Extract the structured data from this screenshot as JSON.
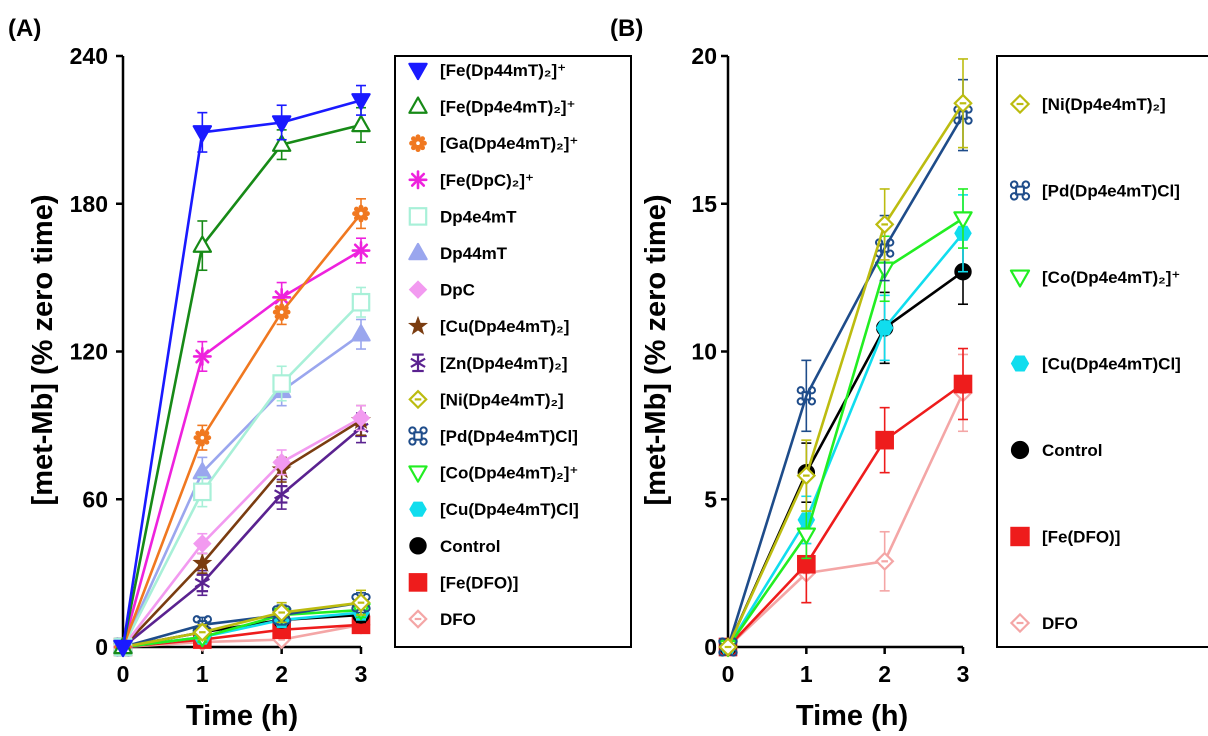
{
  "chart_data": [
    {
      "panel": "(A)",
      "type": "line",
      "xlabel": "Time (h)",
      "ylabel": "[met-Mb] (% zero time)",
      "x": [
        0,
        1,
        2,
        3
      ],
      "xlim": [
        0,
        3
      ],
      "ylim": [
        0,
        240
      ],
      "yticks": [
        0,
        60,
        120,
        180,
        240
      ],
      "grid": false,
      "legend": "right",
      "series": [
        {
          "name": "[Fe(Dp44mT)₂]⁺",
          "color": "#1a1aff",
          "marker": "triangle-down",
          "filled": true,
          "values": [
            0,
            209,
            213,
            222
          ],
          "err": [
            0,
            8,
            7,
            6
          ]
        },
        {
          "name": "[Fe(Dp4e4mT)₂]⁺",
          "color": "#178a17",
          "marker": "triangle-up",
          "filled": false,
          "values": [
            0,
            163,
            204,
            212
          ],
          "err": [
            0,
            10,
            6,
            7
          ]
        },
        {
          "name": "[Ga(Dp4e4mT)₂]⁺",
          "color": "#f07820",
          "marker": "gear",
          "filled": true,
          "values": [
            0,
            85,
            136,
            176
          ],
          "err": [
            0,
            5,
            5,
            6
          ]
        },
        {
          "name": "[Fe(DpC)₂]⁺",
          "color": "#ee22dd",
          "marker": "asterisk",
          "filled": true,
          "values": [
            0,
            118,
            142,
            161
          ],
          "err": [
            0,
            6,
            6,
            5
          ]
        },
        {
          "name": "Dp4e4mT",
          "color": "#a8f0d8",
          "marker": "square",
          "filled": false,
          "values": [
            0,
            63,
            107,
            140
          ],
          "err": [
            0,
            6,
            7,
            6
          ]
        },
        {
          "name": "Dp44mT",
          "color": "#9aa6ee",
          "marker": "triangle-up",
          "filled": true,
          "values": [
            0,
            71,
            104,
            127
          ],
          "err": [
            0,
            6,
            6,
            6
          ]
        },
        {
          "name": "DpC",
          "color": "#f29af0",
          "marker": "diamond",
          "filled": true,
          "values": [
            0,
            42,
            75,
            93
          ],
          "err": [
            0,
            4,
            5,
            5
          ]
        },
        {
          "name": "[Cu(Dp4e4mT)₂]",
          "color": "#7a3c10",
          "marker": "star",
          "filled": true,
          "values": [
            0,
            34,
            72,
            92
          ],
          "err": [
            0,
            4,
            5,
            6
          ]
        },
        {
          "name": "[Zn(Dp4e4mT)₂]",
          "color": "#5a2290",
          "marker": "star-bar",
          "filled": true,
          "values": [
            0,
            26,
            62,
            89
          ],
          "err": [
            0,
            5,
            6,
            6
          ]
        },
        {
          "name": "[Ni(Dp4e4mT)₂]",
          "color": "#bcbc10",
          "marker": "diamond-dot",
          "filled": false,
          "values": [
            0,
            6,
            14,
            18
          ],
          "err": [
            0,
            3,
            4,
            5
          ]
        },
        {
          "name": "[Pd(Dp4e4mT)Cl]",
          "color": "#1e4c8a",
          "marker": "cmd",
          "filled": false,
          "values": [
            0,
            9,
            13,
            18
          ],
          "err": [
            0,
            3,
            4,
            4
          ]
        },
        {
          "name": "[Co(Dp4e4mT)₂]⁺",
          "color": "#22ee22",
          "marker": "triangle-down",
          "filled": false,
          "values": [
            0,
            4,
            13,
            15
          ],
          "err": [
            0,
            2,
            3,
            3
          ]
        },
        {
          "name": "[Cu(Dp4e4mT)Cl]",
          "color": "#10ddee",
          "marker": "hexagon",
          "filled": true,
          "values": [
            0,
            4,
            11,
            14
          ],
          "err": [
            0,
            2,
            3,
            3
          ]
        },
        {
          "name": "Control",
          "color": "#000000",
          "marker": "circle",
          "filled": true,
          "values": [
            0,
            6,
            11,
            13
          ],
          "err": [
            0,
            2,
            3,
            3
          ]
        },
        {
          "name": "[Fe(DFO)]",
          "color": "#ee1c1c",
          "marker": "square",
          "filled": true,
          "values": [
            0,
            3,
            7,
            9
          ],
          "err": [
            0,
            1,
            2,
            2
          ]
        },
        {
          "name": "DFO",
          "color": "#f4a6a6",
          "marker": "diamond-dot",
          "filled": false,
          "values": [
            0,
            2,
            3,
            9
          ],
          "err": [
            0,
            1,
            1,
            2
          ]
        }
      ]
    },
    {
      "panel": "(B)",
      "type": "line",
      "xlabel": "Time (h)",
      "ylabel": "[met-Mb] (% zero time)",
      "x": [
        0,
        1,
        2,
        3
      ],
      "xlim": [
        0,
        3
      ],
      "ylim": [
        0,
        20
      ],
      "yticks": [
        0,
        5,
        10,
        15,
        20
      ],
      "grid": false,
      "legend": "right",
      "series": [
        {
          "name": "[Ni(Dp4e4mT)₂]",
          "color": "#bcbc10",
          "marker": "diamond-dot",
          "filled": false,
          "values": [
            0,
            5.8,
            14.3,
            18.4
          ],
          "err": [
            0,
            1.2,
            1.2,
            1.5
          ]
        },
        {
          "name": "[Pd(Dp4e4mT)Cl]",
          "color": "#1e4c8a",
          "marker": "cmd",
          "filled": false,
          "values": [
            0,
            8.5,
            13.5,
            18.0
          ],
          "err": [
            0,
            1.2,
            1.1,
            1.2
          ]
        },
        {
          "name": "[Co(Dp4e4mT)₂]⁺",
          "color": "#22ee22",
          "marker": "triangle-down",
          "filled": false,
          "values": [
            0,
            3.8,
            12.8,
            14.5
          ],
          "err": [
            0,
            0.8,
            1.1,
            1.0
          ]
        },
        {
          "name": "[Cu(Dp4e4mT)Cl]",
          "color": "#10ddee",
          "marker": "hexagon",
          "filled": true,
          "values": [
            0,
            4.3,
            10.8,
            14.0
          ],
          "err": [
            0,
            0.8,
            1.1,
            1.3
          ]
        },
        {
          "name": "Control",
          "color": "#000000",
          "marker": "circle",
          "filled": true,
          "values": [
            0,
            5.9,
            10.8,
            12.7
          ],
          "err": [
            0,
            1.0,
            1.2,
            1.1
          ]
        },
        {
          "name": "[Fe(DFO)]",
          "color": "#ee1c1c",
          "marker": "square",
          "filled": true,
          "values": [
            0,
            2.8,
            7.0,
            8.9
          ],
          "err": [
            0,
            1.3,
            1.1,
            1.2
          ]
        },
        {
          "name": "DFO",
          "color": "#f4a6a6",
          "marker": "diamond-dot",
          "filled": false,
          "values": [
            0,
            2.5,
            2.9,
            8.6
          ],
          "err": [
            0,
            1.0,
            1.0,
            1.3
          ]
        }
      ]
    }
  ]
}
